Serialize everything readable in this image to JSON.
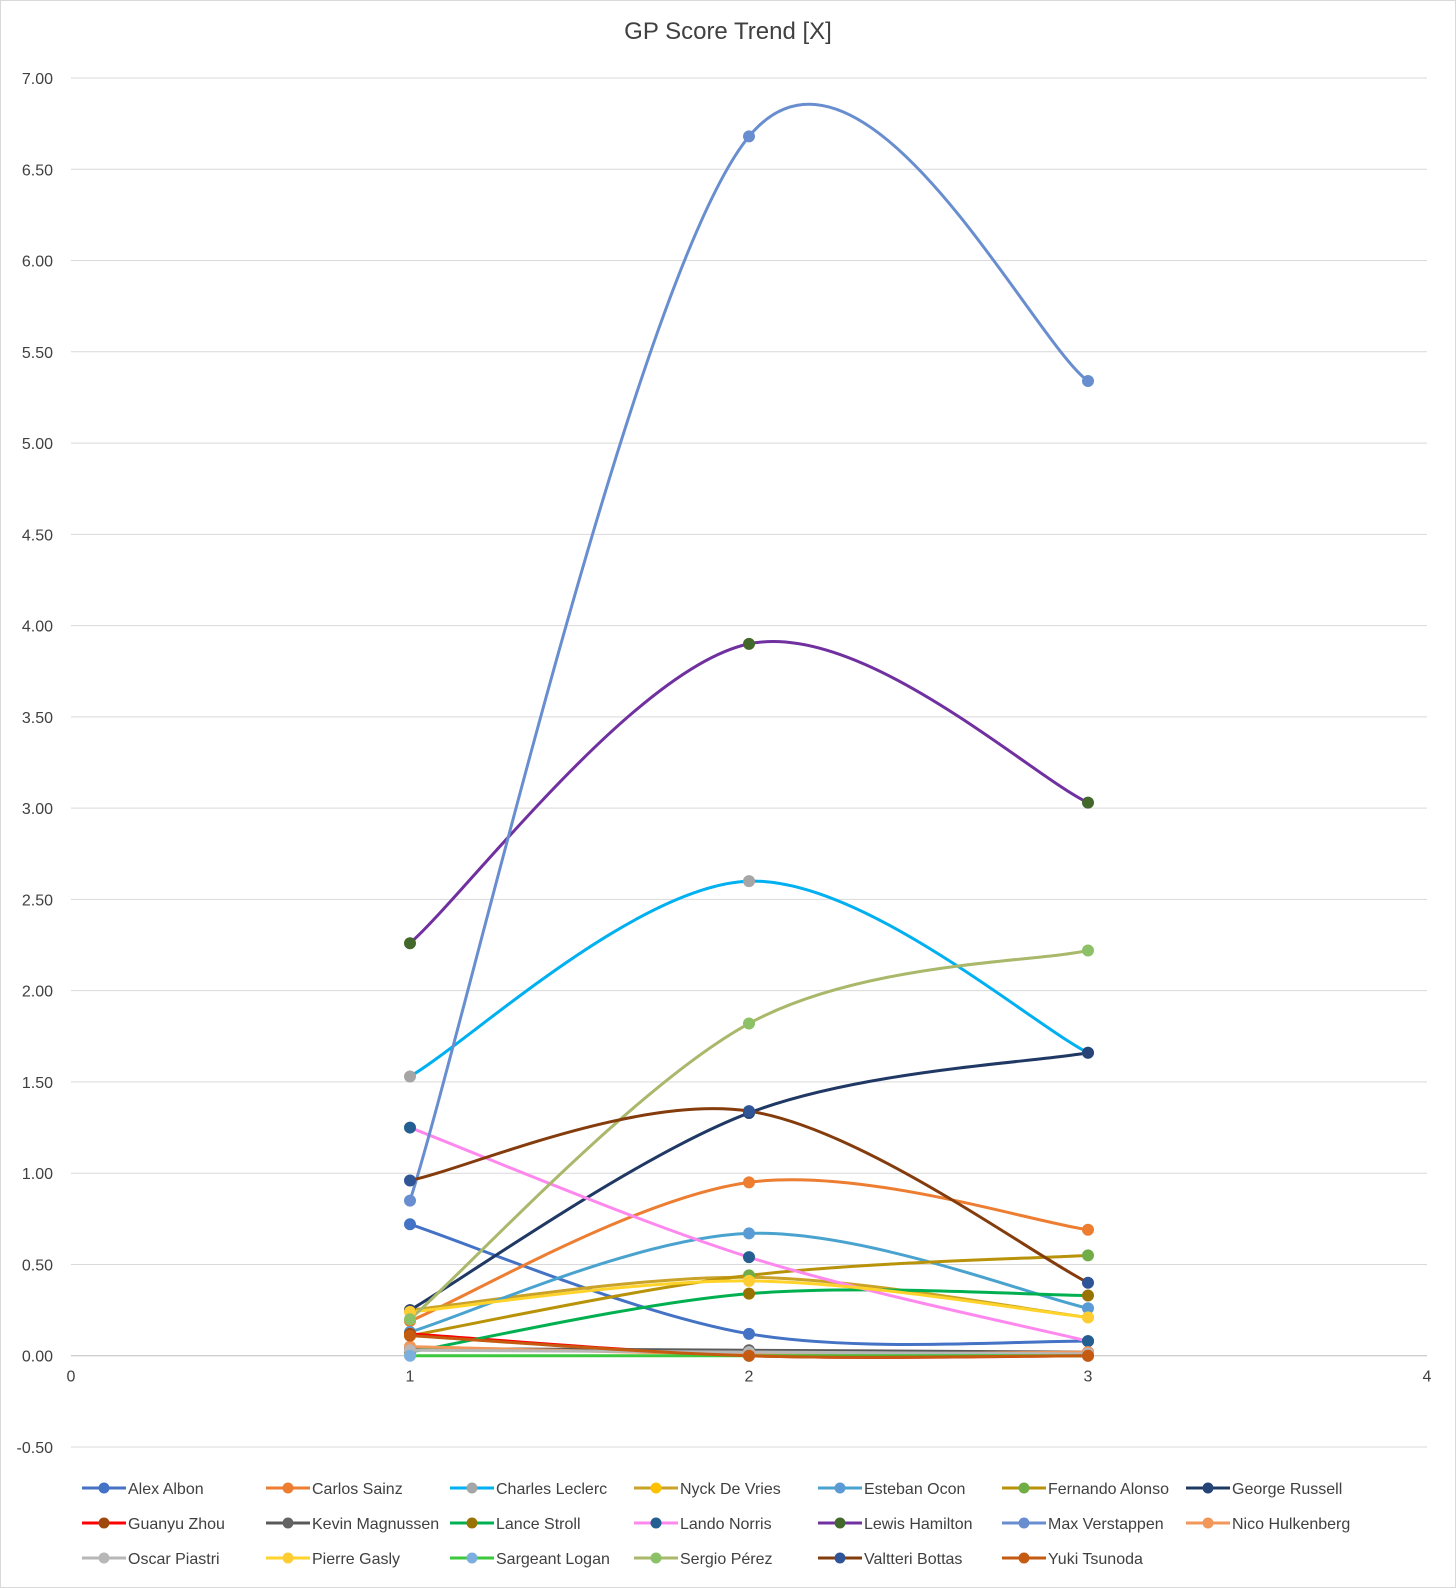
{
  "chart_data": {
    "type": "line",
    "title": "GP Score Trend [X]",
    "xlabel": "",
    "ylabel": "",
    "xlim": [
      0,
      4
    ],
    "ylim": [
      -0.5,
      7.0
    ],
    "x_ticks": [
      "0",
      "1",
      "2",
      "3",
      "4"
    ],
    "y_ticks": [
      "-0.50",
      "0.00",
      "0.50",
      "1.00",
      "1.50",
      "2.00",
      "2.50",
      "3.00",
      "3.50",
      "4.00",
      "4.50",
      "5.00",
      "5.50",
      "6.00",
      "6.50",
      "7.00"
    ],
    "grid": "horizontal",
    "legend_position": "bottom",
    "smooth": true,
    "x": [
      1,
      2,
      3
    ],
    "series": [
      {
        "name": "Alex Albon",
        "color": "#4472c4",
        "marker": "#4472c4",
        "values": [
          0.72,
          0.12,
          0.08
        ]
      },
      {
        "name": "Carlos Sainz",
        "color": "#ed7d31",
        "marker": "#ed7d31",
        "values": [
          0.19,
          0.95,
          0.69
        ]
      },
      {
        "name": "Charles Leclerc",
        "color": "#00b0f0",
        "marker": "#a5a5a5",
        "values": [
          1.53,
          2.6,
          1.66
        ]
      },
      {
        "name": "Nyck De Vries",
        "color": "#c9a227",
        "marker": "#ffc000",
        "values": [
          0.25,
          0.43,
          0.21
        ]
      },
      {
        "name": "Esteban Ocon",
        "color": "#4aa3cf",
        "marker": "#5b9bd5",
        "values": [
          0.13,
          0.67,
          0.26
        ]
      },
      {
        "name": "Fernando Alonso",
        "color": "#b8930a",
        "marker": "#70ad47",
        "values": [
          0.11,
          0.44,
          0.55
        ]
      },
      {
        "name": "George Russell",
        "color": "#203864",
        "marker": "#264478",
        "values": [
          0.25,
          1.33,
          1.66
        ]
      },
      {
        "name": "Guanyu Zhou",
        "color": "#ff0000",
        "marker": "#9e480e",
        "values": [
          0.12,
          0.0,
          0.0
        ]
      },
      {
        "name": "Kevin Magnussen",
        "color": "#595959",
        "marker": "#636363",
        "values": [
          0.04,
          0.03,
          0.02
        ]
      },
      {
        "name": "Lance Stroll",
        "color": "#00b050",
        "marker": "#997300",
        "values": [
          0.02,
          0.34,
          0.33
        ]
      },
      {
        "name": "Lando Norris",
        "color": "#ff88ee",
        "marker": "#255e91",
        "values": [
          1.25,
          0.54,
          0.08
        ]
      },
      {
        "name": "Lewis Hamilton",
        "color": "#7030a0",
        "marker": "#43682b",
        "values": [
          2.26,
          3.9,
          3.03
        ]
      },
      {
        "name": "Max Verstappen",
        "color": "#698ed0",
        "marker": "#698ed0",
        "values": [
          0.85,
          6.68,
          5.34
        ]
      },
      {
        "name": "Nico Hulkenberg",
        "color": "#f1975a",
        "marker": "#f1975a",
        "values": [
          0.05,
          0.01,
          0.02
        ]
      },
      {
        "name": "Oscar Piastri",
        "color": "#b7b7b7",
        "marker": "#b7b7b7",
        "values": [
          0.03,
          0.02,
          0.01
        ]
      },
      {
        "name": "Pierre Gasly",
        "color": "#ffd32a",
        "marker": "#ffcd33",
        "values": [
          0.24,
          0.41,
          0.21
        ]
      },
      {
        "name": "Sargeant Logan",
        "color": "#3cc83c",
        "marker": "#7cafdd",
        "values": [
          0.0,
          0.0,
          0.0
        ]
      },
      {
        "name": "Sergio Pérez",
        "color": "#a9b86a",
        "marker": "#8cc168",
        "values": [
          0.2,
          1.82,
          2.22
        ]
      },
      {
        "name": "Valtteri Bottas",
        "color": "#843c0c",
        "marker": "#2f5597",
        "values": [
          0.96,
          1.34,
          0.4
        ]
      },
      {
        "name": "Yuki Tsunoda",
        "color": "#c55a11",
        "marker": "#c55a11",
        "values": [
          0.11,
          0.0,
          0.0
        ]
      }
    ]
  }
}
